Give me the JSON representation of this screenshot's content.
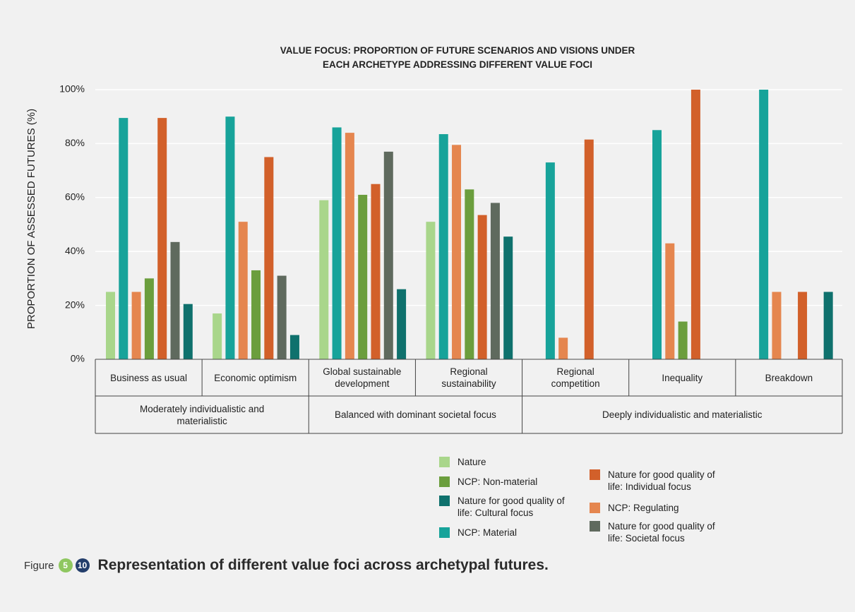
{
  "chart_data": {
    "type": "bar",
    "title": "VALUE FOCUS: PROPORTION OF FUTURE SCENARIOS AND VISIONS UNDER EACH ARCHETYPE ADDRESSING DIFFERENT VALUE FOCI",
    "y_label": "PROPORTION OF ASSESSED FUTURES (%)",
    "categories": [
      "Business as usual",
      "Economic optimism",
      "Global sustainable development",
      "Regional sustainability",
      "Regional competition",
      "Inequality",
      "Breakdown"
    ],
    "groups": [
      {
        "label": "Moderately individualistic and materialistic",
        "size": 2
      },
      {
        "label": "Balanced with dominant societal focus",
        "size": 2
      },
      {
        "label": "Deeply individualistic and materialistic",
        "size": 3
      }
    ],
    "series": [
      {
        "name": "Nature",
        "color": "#a9d68b",
        "values": [
          25,
          17,
          59,
          51,
          0,
          0,
          0
        ]
      },
      {
        "name": "NCP: Material",
        "color": "#17a39a",
        "values": [
          89.5,
          90,
          86,
          83.5,
          73,
          85,
          100
        ]
      },
      {
        "name": "NCP: Regulating",
        "color": "#e5864f",
        "values": [
          25,
          51,
          84,
          79.5,
          8,
          43,
          25
        ]
      },
      {
        "name": "NCP: Non-material",
        "color": "#6b9e3d",
        "values": [
          30,
          33,
          61,
          63,
          0,
          14,
          0
        ]
      },
      {
        "name": "Nature for good quality of life: Individual focus",
        "color": "#d2602a",
        "values": [
          89.5,
          75,
          65,
          53.5,
          81.5,
          100,
          25
        ]
      },
      {
        "name": "Nature for good quality of life: Societal focus",
        "color": "#5f6a5e",
        "values": [
          43.5,
          31,
          77,
          58,
          0,
          0,
          0
        ]
      },
      {
        "name": "Nature for good quality of life: Cultural focus",
        "color": "#0f716d",
        "values": [
          20.5,
          9,
          26,
          45.5,
          0,
          0,
          25
        ]
      }
    ],
    "ylim": [
      0,
      100
    ],
    "yticks": [
      {
        "value": 0,
        "label": "0%"
      },
      {
        "value": 20,
        "label": "20%"
      },
      {
        "value": 40,
        "label": "40%"
      },
      {
        "value": 60,
        "label": "60%"
      },
      {
        "value": 80,
        "label": "80%"
      },
      {
        "value": 100,
        "label": "100%"
      }
    ],
    "grid": true
  },
  "figure": {
    "prefix": "Figure",
    "badges": [
      "5",
      "10"
    ],
    "caption": "Representation of different value foci across archetypal futures."
  }
}
